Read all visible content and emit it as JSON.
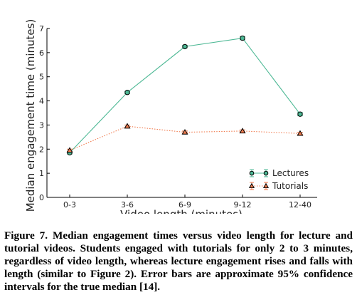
{
  "chart_data": {
    "type": "line",
    "xlabel": "Video length (minutes)",
    "ylabel": "Median engagement time (minutes)",
    "categories": [
      "0-3",
      "3-6",
      "6-9",
      "9-12",
      "12-40"
    ],
    "ylim": [
      0,
      7
    ],
    "yticks": [
      0,
      1,
      2,
      3,
      4,
      5,
      6,
      7
    ],
    "grid": false,
    "legend_position": "bottom-right",
    "series": [
      {
        "name": "Lectures",
        "values": [
          1.85,
          4.35,
          6.25,
          6.6,
          3.45
        ],
        "error": [
          0.05,
          0.05,
          0.05,
          0.07,
          0.07
        ],
        "color": "#4cb894",
        "marker": "circle",
        "line_style": "solid"
      },
      {
        "name": "Tutorials",
        "values": [
          1.95,
          2.95,
          2.7,
          2.75,
          2.65
        ],
        "error": [
          0.05,
          0.05,
          0.05,
          0.05,
          0.05
        ],
        "color": "#f07b4e",
        "marker": "triangle",
        "line_style": "dotted"
      }
    ]
  },
  "caption": "Figure 7. Median engagement times versus video length for lecture and tutorial videos. Students engaged with tutorials for only 2 to 3 minutes, regardless of video length, whereas lecture engagement rises and falls with length (similar to Figure 2). Error bars are approximate 95% confidence intervals for the true median [14]."
}
